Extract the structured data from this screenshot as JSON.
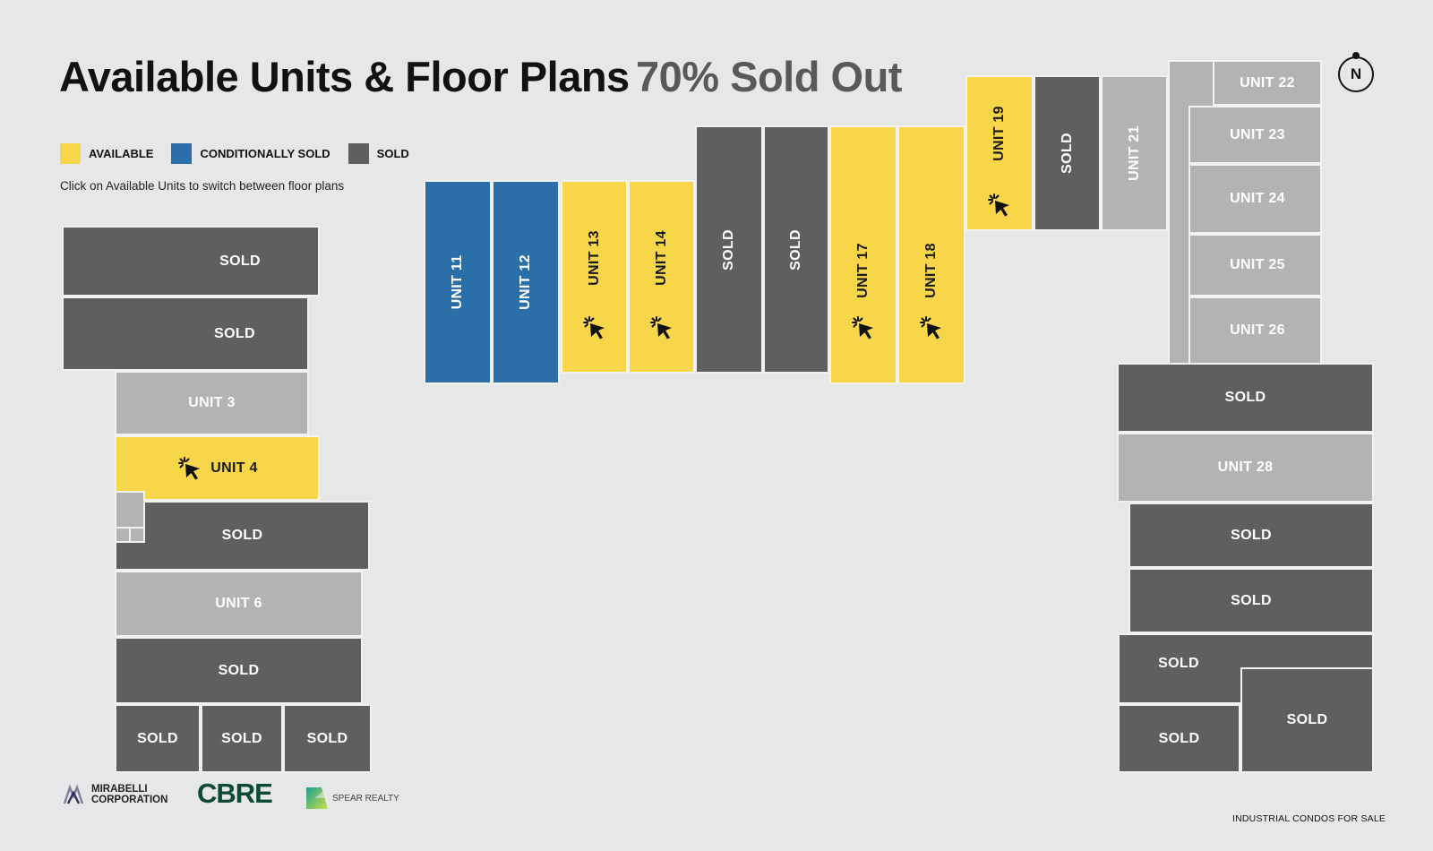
{
  "header": {
    "title": "Available Units & Floor Plans",
    "subtitle": "70% Sold Out"
  },
  "legend": [
    {
      "label": "AVAILABLE",
      "color": "#f7d64a"
    },
    {
      "label": "CONDITIONALLY SOLD",
      "color": "#2a6fa8"
    },
    {
      "label": "SOLD",
      "color": "#5e5f61"
    }
  ],
  "hint": "Click on Available Units to switch between floor plans",
  "compass": {
    "label": "N"
  },
  "colors": {
    "available": "#f7d64a",
    "conditionally_sold": "#2a6fa8",
    "sold": "#5e5f61",
    "unlisted": "#b3b3b3",
    "background": "#e6e7e8"
  },
  "icons": {
    "available_unit": "click-cursor-icon"
  },
  "west_block": [
    {
      "label": "SOLD",
      "status": "sold"
    },
    {
      "label": "SOLD",
      "status": "sold"
    },
    {
      "label": "UNIT 3",
      "status": "unlisted"
    },
    {
      "label": "UNIT 4",
      "status": "available"
    },
    {
      "label": "SOLD",
      "status": "sold"
    },
    {
      "label": "UNIT 6",
      "status": "unlisted"
    },
    {
      "label": "SOLD",
      "status": "sold"
    },
    {
      "label": "SOLD",
      "status": "sold"
    },
    {
      "label": "SOLD",
      "status": "sold"
    },
    {
      "label": "SOLD",
      "status": "sold"
    }
  ],
  "north_block": [
    {
      "label": "UNIT 11",
      "status": "conditionally_sold"
    },
    {
      "label": "UNIT 12",
      "status": "conditionally_sold"
    },
    {
      "label": "UNIT 13",
      "status": "available"
    },
    {
      "label": "UNIT 14",
      "status": "available"
    },
    {
      "label": "SOLD",
      "status": "sold"
    },
    {
      "label": "SOLD",
      "status": "sold"
    },
    {
      "label": "UNIT 17",
      "status": "available"
    },
    {
      "label": "UNIT 18",
      "status": "available"
    },
    {
      "label": "UNIT 19",
      "status": "available"
    },
    {
      "label": "SOLD",
      "status": "sold"
    },
    {
      "label": "UNIT 21",
      "status": "unlisted"
    }
  ],
  "east_block": [
    {
      "label": "UNIT 22",
      "status": "unlisted"
    },
    {
      "label": "UNIT 23",
      "status": "unlisted"
    },
    {
      "label": "UNIT 24",
      "status": "unlisted"
    },
    {
      "label": "UNIT 25",
      "status": "unlisted"
    },
    {
      "label": "UNIT 26",
      "status": "unlisted"
    },
    {
      "label": "SOLD",
      "status": "sold"
    },
    {
      "label": "UNIT 28",
      "status": "unlisted"
    },
    {
      "label": "SOLD",
      "status": "sold"
    },
    {
      "label": "SOLD",
      "status": "sold"
    },
    {
      "label": "SOLD",
      "status": "sold"
    },
    {
      "label": "SOLD",
      "status": "sold"
    },
    {
      "label": "SOLD",
      "status": "sold"
    }
  ],
  "logos": {
    "mirabelli": "MIRABELLI CORPORATION",
    "cbre": "CBRE",
    "spear": "SPEAR REALTY"
  },
  "footer": "INDUSTRIAL CONDOS FOR SALE"
}
